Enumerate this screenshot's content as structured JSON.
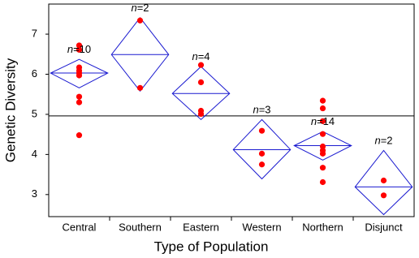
{
  "chart_data": {
    "type": "means-diamonds",
    "y_label": "Genetic Diversity",
    "x_label": "Type of Population",
    "ylim": [
      2.45,
      7.75
    ],
    "yticks": [
      3,
      4,
      5,
      6,
      7
    ],
    "grand_mean": 4.96,
    "diamond_color": "#1a1ad0",
    "point_color": "#ff0000",
    "groups": [
      {
        "name": "Central",
        "n_label": "n=10",
        "mean": 6.03,
        "lower": 5.66,
        "upper": 6.37,
        "points": [
          6.72,
          6.61,
          6.17,
          6.09,
          6.03,
          5.97,
          5.44,
          5.3,
          4.48
        ]
      },
      {
        "name": "Southern",
        "n_label": "n=2",
        "mean": 6.49,
        "lower": 5.58,
        "upper": 7.41,
        "points": [
          7.34,
          5.66
        ]
      },
      {
        "name": "Eastern",
        "n_label": "n=4",
        "mean": 5.52,
        "lower": 4.87,
        "upper": 6.19,
        "points": [
          6.23,
          5.8,
          5.09,
          5.01
        ]
      },
      {
        "name": "Western",
        "n_label": "n=3",
        "mean": 4.12,
        "lower": 3.39,
        "upper": 4.87,
        "points": [
          4.59,
          4.02,
          3.75
        ]
      },
      {
        "name": "Northern",
        "n_label": "n=14",
        "mean": 4.22,
        "lower": 3.86,
        "upper": 4.57,
        "points": [
          5.34,
          5.15,
          4.83,
          4.51,
          4.2,
          4.1,
          4.02,
          3.67,
          3.31
        ]
      },
      {
        "name": "Disjunct",
        "n_label": "n=2",
        "mean": 3.19,
        "lower": 2.5,
        "upper": 4.1,
        "points": [
          3.35,
          2.98
        ]
      }
    ]
  }
}
